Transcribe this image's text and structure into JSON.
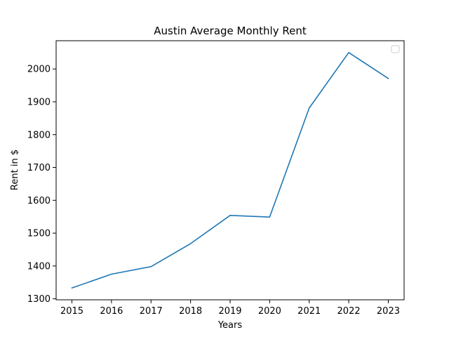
{
  "chart_data": {
    "type": "line",
    "title": "Austin Average Monthly Rent",
    "xlabel": "Years",
    "ylabel": "Rent in $",
    "x": [
      2015,
      2016,
      2017,
      2018,
      2019,
      2020,
      2021,
      2022,
      2023
    ],
    "series": [
      {
        "values": [
          1333,
          1375,
          1398,
          1468,
          1554,
          1549,
          1881,
          2050,
          1971
        ],
        "color": "#1f77b4"
      }
    ],
    "xticks": [
      "2015",
      "2016",
      "2017",
      "2018",
      "2019",
      "2020",
      "2021",
      "2022",
      "2023"
    ],
    "yticks": [
      "1300",
      "1400",
      "1500",
      "1600",
      "1700",
      "1800",
      "1900",
      "2000"
    ],
    "ylim": [
      1297,
      2086
    ],
    "xlim": [
      2014.6,
      2023.4
    ],
    "grid": false,
    "legend": "top-right (empty)"
  }
}
